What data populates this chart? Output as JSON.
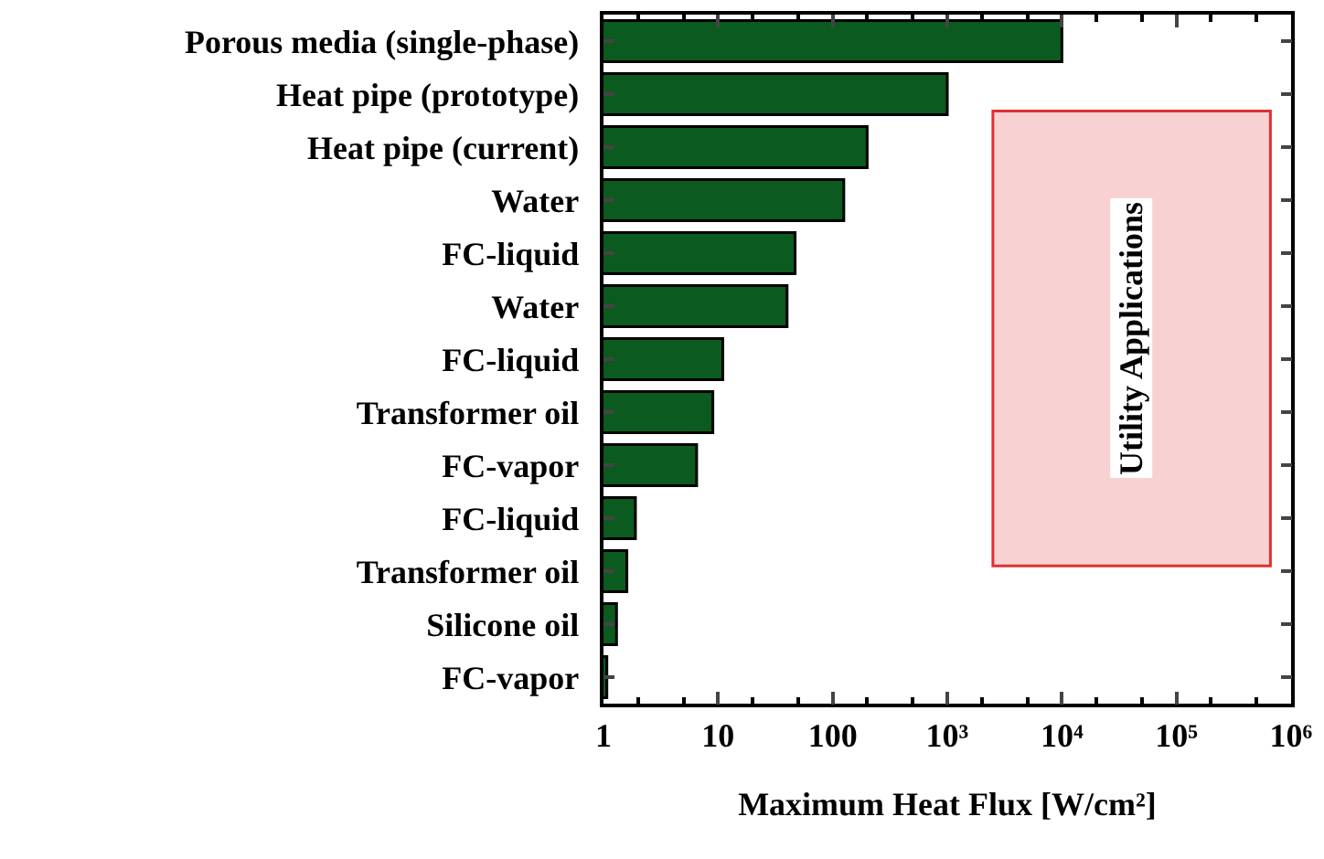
{
  "chart_data": {
    "type": "bar",
    "orientation": "horizontal",
    "xlabel": "Maximum Heat Flux [W/cm²]",
    "categories": [
      "Porous media (single-phase)",
      "Heat pipe (prototype)",
      "Heat pipe (current)",
      "Water",
      "FC-liquid",
      "Water",
      "FC-liquid",
      "Transformer oil",
      "FC-vapor",
      "FC-liquid",
      "Transformer oil",
      "Silicone oil",
      "FC-vapor"
    ],
    "values": [
      10000,
      1000,
      200,
      125,
      47,
      40,
      11,
      9,
      6.5,
      1.9,
      1.6,
      1.3,
      1.07
    ],
    "color": "#0b5a1f",
    "log": "x",
    "xlim": [
      1,
      1000000
    ],
    "xticks": [
      1,
      10,
      100,
      {
        "value": 1000,
        "label": "10³"
      },
      {
        "value": 10000,
        "label": "10⁴"
      },
      {
        "value": 100000,
        "label": "10⁵"
      },
      {
        "value": 1000000,
        "label": "10⁶"
      }
    ],
    "grid": false,
    "bands": [
      {
        "axis": "x",
        "from": 2500,
        "to": 660000,
        "label": "Utility Applications",
        "color": "#e03030"
      }
    ]
  }
}
